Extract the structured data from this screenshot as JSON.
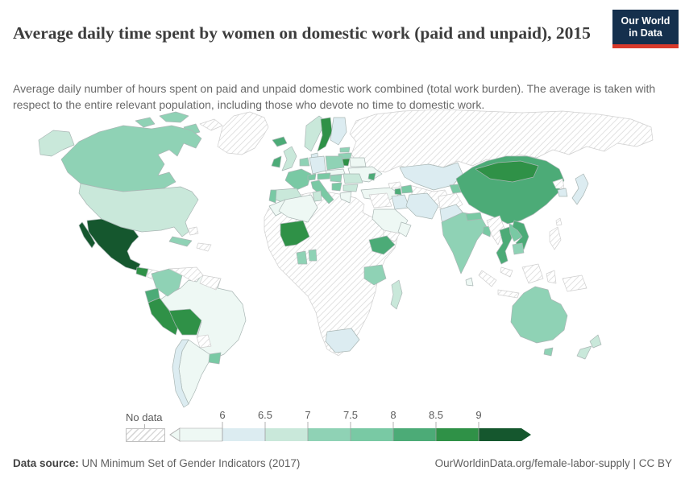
{
  "header": {
    "title": "Average daily time spent by women on domestic work (paid and unpaid), 2015",
    "subtitle": "Average daily number of hours spent on paid and unpaid domestic work combined (total work burden). The average is taken with respect to the entire relevant population, including those who devote no time to domestic work."
  },
  "logo": {
    "line1": "Our World",
    "line2": "in Data",
    "bg_color": "#15304d",
    "accent_color": "#d93a2b"
  },
  "legend": {
    "no_data_label": "No data",
    "ticks": [
      "6",
      "6.5",
      "7",
      "7.5",
      "8",
      "8.5",
      "9"
    ]
  },
  "footer": {
    "source_label": "Data source:",
    "source_text": " UN Minimum Set of Gender Indicators (2017)",
    "link_text": "OurWorldinData.org/female-labor-supply | CC BY"
  },
  "chart_data": {
    "type": "choropleth_map",
    "title": "Average daily time spent by women on domestic work (paid and unpaid), 2015",
    "unit": "hours per day",
    "legend_position": "bottom",
    "no_data_style": "diagonal-hatch",
    "legend_bins": [
      {
        "range": "<6",
        "color": "#eef8f4"
      },
      {
        "range": "6-6.5",
        "color": "#dcecf1"
      },
      {
        "range": "6.5-7",
        "color": "#c9e8da"
      },
      {
        "range": "7-7.5",
        "color": "#8fd2b5"
      },
      {
        "range": "7.5-8",
        "color": "#79c9a4"
      },
      {
        "range": "8-8.5",
        "color": "#4cab77"
      },
      {
        "range": "8.5-9",
        "color": "#2f9147"
      },
      {
        "range": ">9",
        "color": "#15572e"
      }
    ],
    "countries": {
      "mexico": 7,
      "guatemala": 6,
      "peru": 6,
      "bolivia": 6,
      "mali": 6,
      "sweden": 6,
      "lithuania": 6,
      "mongolia": 6,
      "china": 5,
      "ethiopia": 5,
      "thailand": 5,
      "vietnam": 5,
      "ireland": 5,
      "iceland": 5,
      "ecuador": 5,
      "moldova": 5,
      "armenia": 5,
      "france": 4,
      "italy": 4,
      "portugal": 4,
      "uruguay": 4,
      "panama": 4,
      "laos": 4,
      "azerbaijan": 4,
      "kyrgyzstan": 4,
      "nepal": 4,
      "bangladesh": 4,
      "austria": 4,
      "switzerland": 4,
      "serbia": 4,
      "canada": 3,
      "australia": 3,
      "india": 3,
      "cuba": 3,
      "colombia": 3,
      "poland": 3,
      "tanzania": 3,
      "ghana": 3,
      "benin": 3,
      "hungary": 3,
      "estonia": 3,
      "latvia": 3,
      "benelux": 3,
      "cambodia": 3,
      "united-states": 2,
      "united-kingdom": 2,
      "spain": 2,
      "romania": 2,
      "bulgaria": 2,
      "norway": 2,
      "new-zealand": 2,
      "madagascar": 2,
      "tunisia": 2,
      "kazakhstan": 1,
      "japan": 1,
      "south-korea": 1,
      "pakistan": 1,
      "iran": 1,
      "iraq": 1,
      "chile": 1,
      "south-africa": 1,
      "finland": 1,
      "germany": 1,
      "denmark": 1,
      "brazil": 0,
      "argentina": 0,
      "turkey": 0,
      "ukraine": 0,
      "greece": 0,
      "belarus": 0,
      "morocco": 0,
      "algeria": 0,
      "saudi-arabia": 0,
      "oman": 0,
      "sri-lanka": 0,
      "costa-rica": 0,
      "czechia-slovakia": 0,
      "russia": "no_data",
      "greenland": "no_data",
      "africa-nodata": "no_data",
      "venezuela": "no_data",
      "guyanas": "no_data",
      "paraguay": "no_data",
      "honduras-nicaragua": "no_data",
      "hispaniola": "no_data",
      "myanmar": "no_data",
      "indonesia": "no_data",
      "philippines": "no_data",
      "malaysia": "no_data",
      "new-guinea": "no_data",
      "afghanistan": "no_data",
      "central-asia": "no_data",
      "georgia": "no_data",
      "levant": "no_data",
      "yemen": "no_data",
      "north-korea": "no_data",
      "taiwan": "no_data",
      "arctic-islands": "no_data",
      "bahamas": "no_data"
    }
  }
}
